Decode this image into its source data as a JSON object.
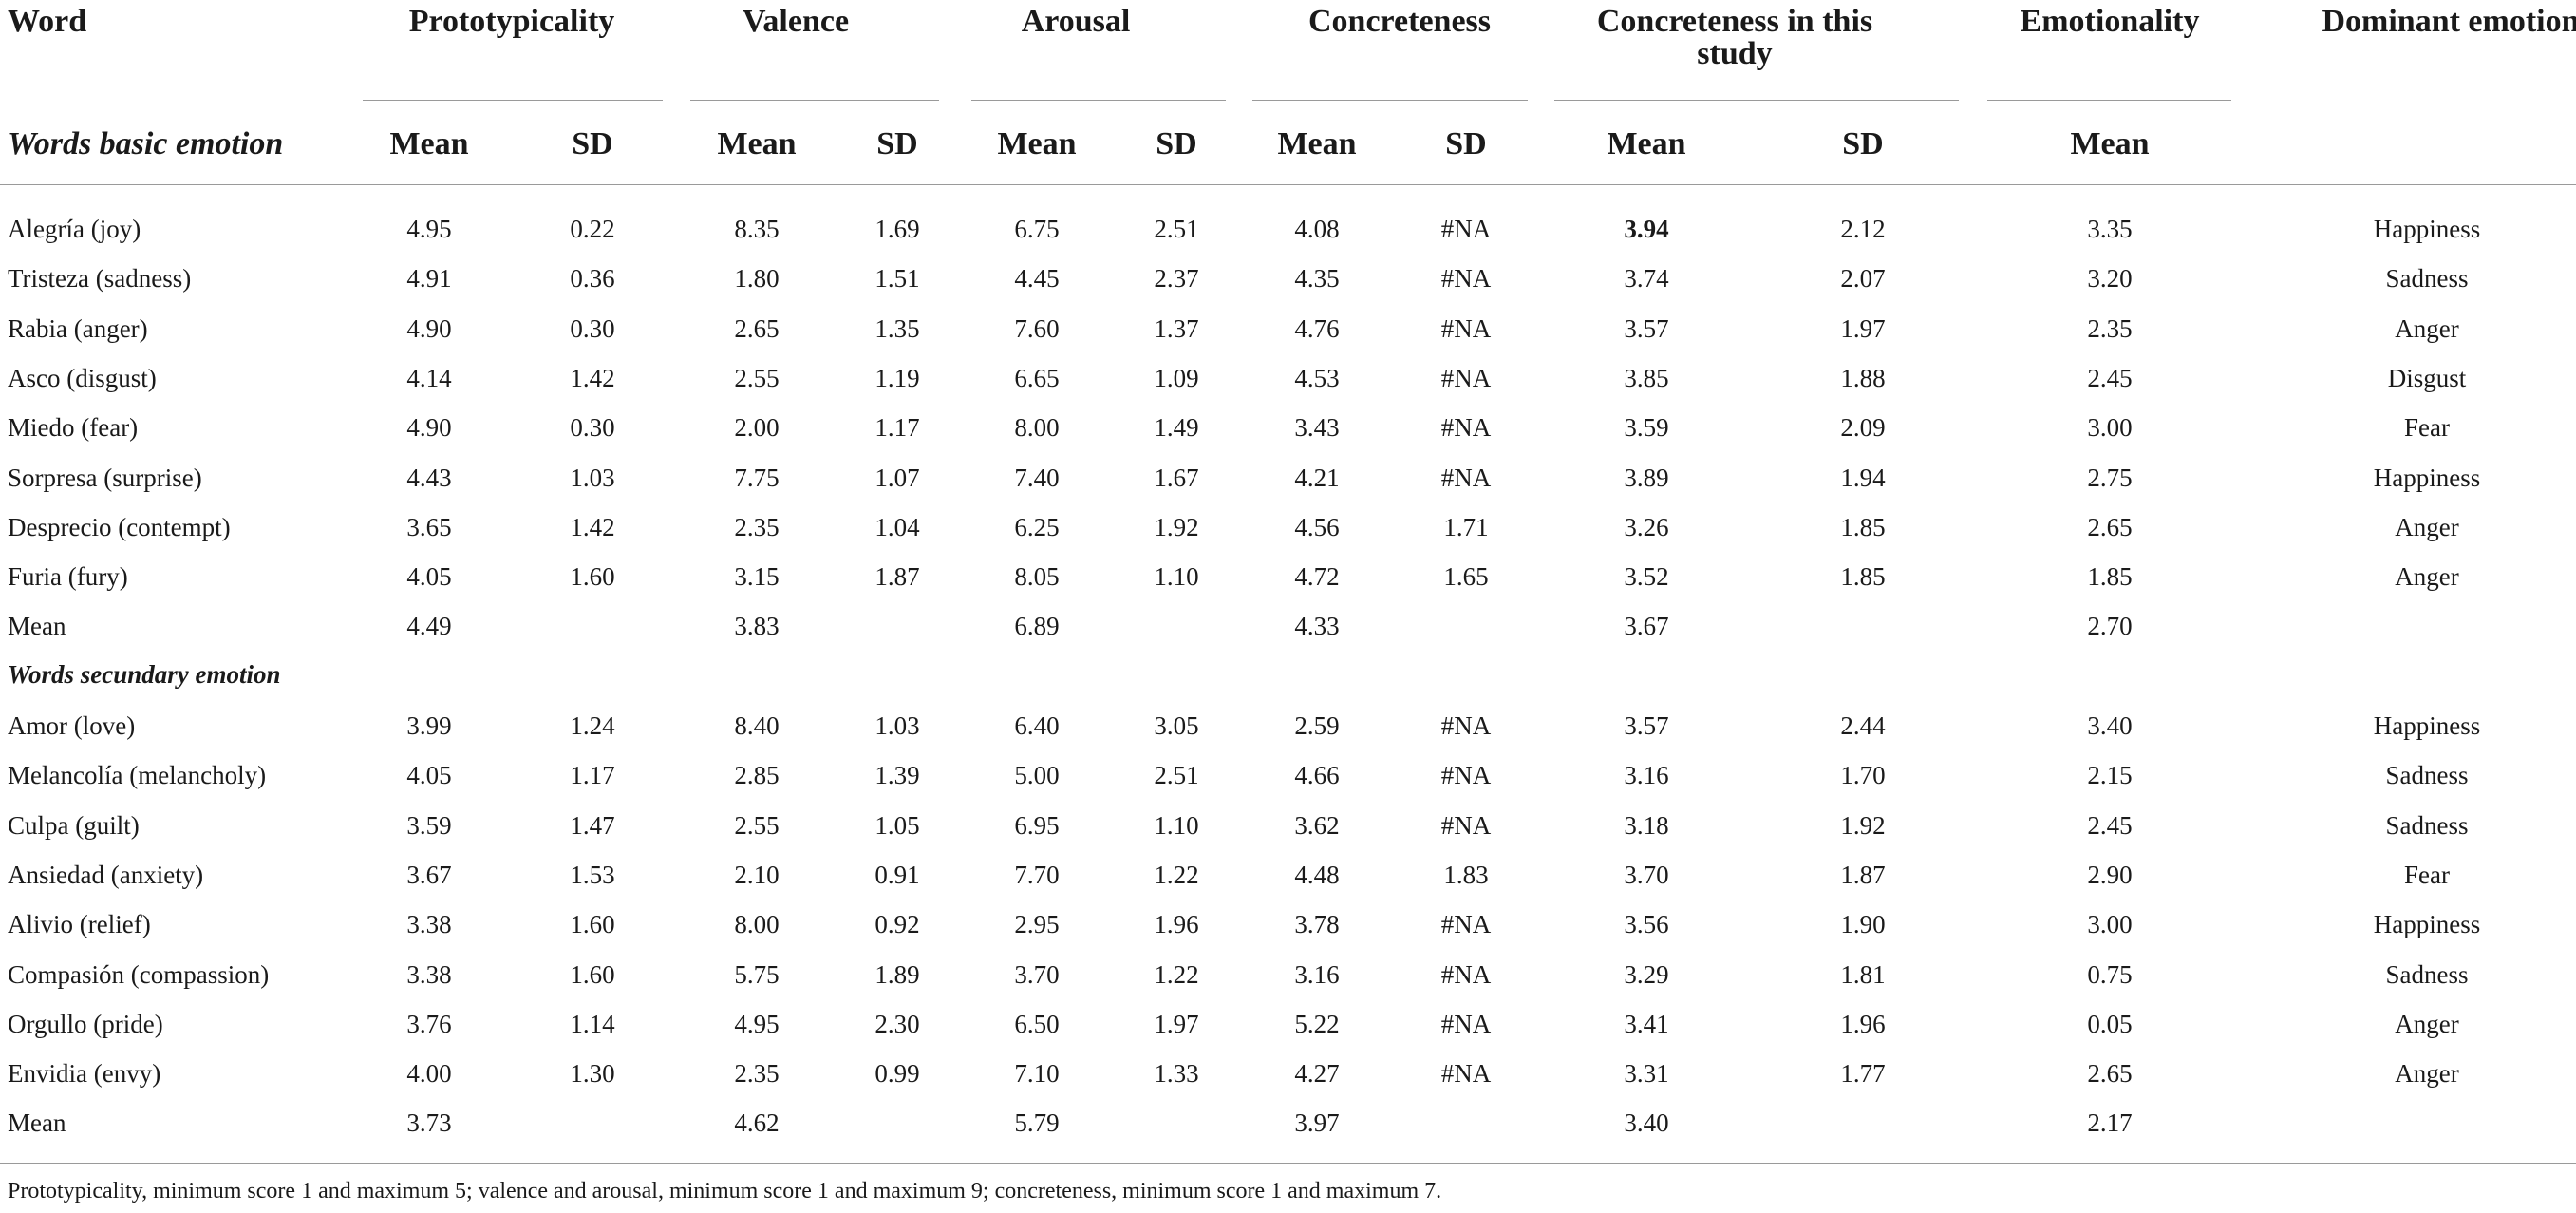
{
  "headers": {
    "word": "Word",
    "prototypicality": "Prototypicality",
    "valence": "Valence",
    "arousal": "Arousal",
    "concreteness": "Concreteness",
    "concreteness_study_line1": "Concreteness in this",
    "concreteness_study_line2": "study",
    "emotionality": "Emotionality",
    "dominant": "Dominant emotion",
    "mean": "Mean",
    "sd": "SD"
  },
  "sections": {
    "basic": "Words basic emotion",
    "secondary": "Words secundary emotion"
  },
  "basic_rows": [
    {
      "word": "Alegría (joy)",
      "p_m": "4.95",
      "p_sd": "0.22",
      "v_m": "8.35",
      "v_sd": "1.69",
      "a_m": "6.75",
      "a_sd": "2.51",
      "c_m": "4.08",
      "c_sd": "#NA",
      "cs_m": "3.94",
      "cs_sd": "2.12",
      "e_m": "3.35",
      "dom": "Happiness"
    },
    {
      "word": "Tristeza (sadness)",
      "p_m": "4.91",
      "p_sd": "0.36",
      "v_m": "1.80",
      "v_sd": "1.51",
      "a_m": "4.45",
      "a_sd": "2.37",
      "c_m": "4.35",
      "c_sd": "#NA",
      "cs_m": "3.74",
      "cs_sd": "2.07",
      "e_m": "3.20",
      "dom": "Sadness"
    },
    {
      "word": "Rabia (anger)",
      "p_m": "4.90",
      "p_sd": "0.30",
      "v_m": "2.65",
      "v_sd": "1.35",
      "a_m": "7.60",
      "a_sd": "1.37",
      "c_m": "4.76",
      "c_sd": "#NA",
      "cs_m": "3.57",
      "cs_sd": "1.97",
      "e_m": "2.35",
      "dom": "Anger"
    },
    {
      "word": "Asco (disgust)",
      "p_m": "4.14",
      "p_sd": "1.42",
      "v_m": "2.55",
      "v_sd": "1.19",
      "a_m": "6.65",
      "a_sd": "1.09",
      "c_m": "4.53",
      "c_sd": "#NA",
      "cs_m": "3.85",
      "cs_sd": "1.88",
      "e_m": "2.45",
      "dom": "Disgust"
    },
    {
      "word": "Miedo (fear)",
      "p_m": "4.90",
      "p_sd": "0.30",
      "v_m": "2.00",
      "v_sd": "1.17",
      "a_m": "8.00",
      "a_sd": "1.49",
      "c_m": "3.43",
      "c_sd": "#NA",
      "cs_m": "3.59",
      "cs_sd": "2.09",
      "e_m": "3.00",
      "dom": "Fear"
    },
    {
      "word": "Sorpresa (surprise)",
      "p_m": "4.43",
      "p_sd": "1.03",
      "v_m": "7.75",
      "v_sd": "1.07",
      "a_m": "7.40",
      "a_sd": "1.67",
      "c_m": "4.21",
      "c_sd": "#NA",
      "cs_m": "3.89",
      "cs_sd": "1.94",
      "e_m": "2.75",
      "dom": "Happiness"
    },
    {
      "word": "Desprecio (contempt)",
      "p_m": "3.65",
      "p_sd": "1.42",
      "v_m": "2.35",
      "v_sd": "1.04",
      "a_m": "6.25",
      "a_sd": "1.92",
      "c_m": "4.56",
      "c_sd": "1.71",
      "cs_m": "3.26",
      "cs_sd": "1.85",
      "e_m": "2.65",
      "dom": "Anger"
    },
    {
      "word": "Furia (fury)",
      "p_m": "4.05",
      "p_sd": "1.60",
      "v_m": "3.15",
      "v_sd": "1.87",
      "a_m": "8.05",
      "a_sd": "1.10",
      "c_m": "4.72",
      "c_sd": "1.65",
      "cs_m": "3.52",
      "cs_sd": "1.85",
      "e_m": "1.85",
      "dom": "Anger"
    }
  ],
  "basic_mean": {
    "word": "Mean",
    "p_m": "4.49",
    "v_m": "3.83",
    "a_m": "6.89",
    "c_m": "4.33",
    "cs_m": "3.67",
    "e_m": "2.70"
  },
  "secondary_rows": [
    {
      "word": "Amor (love)",
      "p_m": "3.99",
      "p_sd": "1.24",
      "v_m": "8.40",
      "v_sd": "1.03",
      "a_m": "6.40",
      "a_sd": "3.05",
      "c_m": "2.59",
      "c_sd": "#NA",
      "cs_m": "3.57",
      "cs_sd": "2.44",
      "e_m": "3.40",
      "dom": "Happiness"
    },
    {
      "word": "Melancolía (melancholy)",
      "p_m": "4.05",
      "p_sd": "1.17",
      "v_m": "2.85",
      "v_sd": "1.39",
      "a_m": "5.00",
      "a_sd": "2.51",
      "c_m": "4.66",
      "c_sd": "#NA",
      "cs_m": "3.16",
      "cs_sd": "1.70",
      "e_m": "2.15",
      "dom": "Sadness"
    },
    {
      "word": "Culpa (guilt)",
      "p_m": "3.59",
      "p_sd": "1.47",
      "v_m": "2.55",
      "v_sd": "1.05",
      "a_m": "6.95",
      "a_sd": "1.10",
      "c_m": "3.62",
      "c_sd": "#NA",
      "cs_m": "3.18",
      "cs_sd": "1.92",
      "e_m": "2.45",
      "dom": "Sadness"
    },
    {
      "word": "Ansiedad (anxiety)",
      "p_m": "3.67",
      "p_sd": "1.53",
      "v_m": "2.10",
      "v_sd": "0.91",
      "a_m": "7.70",
      "a_sd": "1.22",
      "c_m": "4.48",
      "c_sd": "1.83",
      "cs_m": "3.70",
      "cs_sd": "1.87",
      "e_m": "2.90",
      "dom": "Fear"
    },
    {
      "word": "Alivio (relief)",
      "p_m": "3.38",
      "p_sd": "1.60",
      "v_m": "8.00",
      "v_sd": "0.92",
      "a_m": "2.95",
      "a_sd": "1.96",
      "c_m": "3.78",
      "c_sd": "#NA",
      "cs_m": "3.56",
      "cs_sd": "1.90",
      "e_m": "3.00",
      "dom": "Happiness"
    },
    {
      "word": "Compasión (compassion)",
      "p_m": "3.38",
      "p_sd": "1.60",
      "v_m": "5.75",
      "v_sd": "1.89",
      "a_m": "3.70",
      "a_sd": "1.22",
      "c_m": "3.16",
      "c_sd": "#NA",
      "cs_m": "3.29",
      "cs_sd": "1.81",
      "e_m": "0.75",
      "dom": "Sadness"
    },
    {
      "word": "Orgullo (pride)",
      "p_m": "3.76",
      "p_sd": "1.14",
      "v_m": "4.95",
      "v_sd": "2.30",
      "a_m": "6.50",
      "a_sd": "1.97",
      "c_m": "5.22",
      "c_sd": "#NA",
      "cs_m": "3.41",
      "cs_sd": "1.96",
      "e_m": "0.05",
      "dom": "Anger"
    },
    {
      "word": "Envidia (envy)",
      "p_m": "4.00",
      "p_sd": "1.30",
      "v_m": "2.35",
      "v_sd": "0.99",
      "a_m": "7.10",
      "a_sd": "1.33",
      "c_m": "4.27",
      "c_sd": "#NA",
      "cs_m": "3.31",
      "cs_sd": "1.77",
      "e_m": "2.65",
      "dom": "Anger"
    }
  ],
  "secondary_mean": {
    "word": "Mean",
    "p_m": "3.73",
    "v_m": "4.62",
    "a_m": "5.79",
    "c_m": "3.97",
    "cs_m": "3.40",
    "e_m": "2.17"
  },
  "footnote": "Prototypicality, minimum score 1 and maximum 5; valence and arousal, minimum score 1 and maximum 9; concreteness, minimum score 1 and maximum 7.",
  "colors": {
    "text": "#1a1a1a",
    "rule": "#9a9a9a"
  }
}
